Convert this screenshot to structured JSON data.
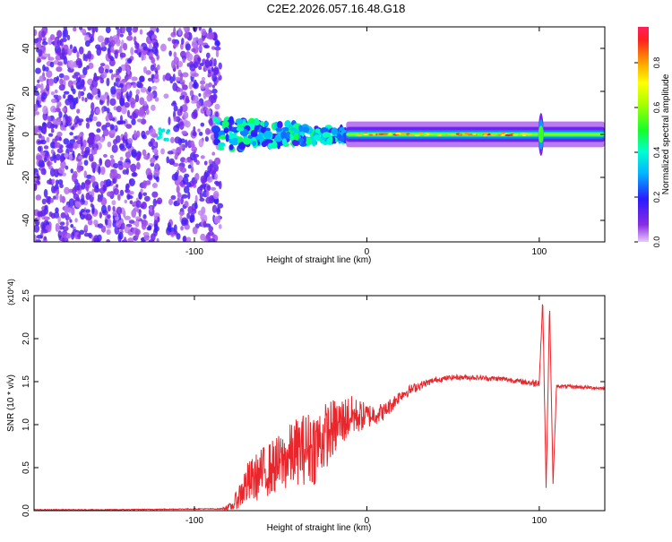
{
  "title": "C2E2.2026.057.16.48.G18",
  "colors": {
    "snr_line": "#e8262b",
    "axis": "#000000",
    "background": "#ffffff"
  },
  "chart_data": [
    {
      "type": "heatmap",
      "xlabel": "Height of straight line (km)",
      "ylabel": "Frequency (Hz)",
      "xlim": [
        -193,
        138
      ],
      "ylim": [
        -50,
        50
      ],
      "xticks": [
        -100,
        0,
        100
      ],
      "yticks": [
        -40,
        -20,
        0,
        20,
        40
      ],
      "colorbar": {
        "label": "Normalized spectral amplitude",
        "range": [
          0.0,
          0.96
        ],
        "ticks": [
          0.0,
          0.2,
          0.4,
          0.6,
          0.8
        ],
        "colormap": "rainbow (violet to red)"
      },
      "grid": false,
      "description_note": ""
    },
    {
      "type": "line",
      "xlabel": "Height of straight line (km)",
      "ylabel": "SNR (10 * v/v)",
      "y_multiplier": "(x10^4)",
      "xlim": [
        -193,
        138
      ],
      "ylim": [
        0,
        2.5
      ],
      "xticks": [
        -100,
        0,
        100
      ],
      "yticks": [
        0.0,
        0.5,
        1.0,
        1.5,
        2.0,
        2.5
      ],
      "grid": false,
      "series": [
        {
          "color": "#e8262b",
          "envelope": {
            "x": [
              -193,
              -150,
              -100,
              -85,
              -78,
              -70,
              -60,
              -50,
              -40,
              -30,
              -20,
              -10,
              0,
              10,
              20,
              30,
              40,
              50,
              60,
              70,
              80,
              90,
              97,
              100,
              102,
              104,
              106,
              108,
              110,
              120,
              130,
              138
            ],
            "y": [
              0.01,
              0.01,
              0.02,
              0.02,
              0.05,
              0.3,
              0.45,
              0.55,
              0.7,
              0.75,
              0.95,
              1.1,
              1.1,
              1.15,
              1.35,
              1.45,
              1.52,
              1.55,
              1.55,
              1.54,
              1.53,
              1.5,
              1.48,
              1.5,
              2.45,
              0.25,
              2.4,
              0.3,
              1.45,
              1.44,
              1.43,
              1.42
            ]
          },
          "noise_amplitude": {
            "x": [
              -193,
              -85,
              -78,
              -70,
              -50,
              -30,
              -20,
              -10,
              0,
              10,
              20,
              40,
              60,
              90,
              100,
              110,
              138
            ],
            "y": [
              0.005,
              0.005,
              0.05,
              0.25,
              0.35,
              0.45,
              0.35,
              0.25,
              0.15,
              0.1,
              0.07,
              0.03,
              0.03,
              0.03,
              0.05,
              0.02,
              0.02
            ]
          }
        }
      ]
    }
  ]
}
